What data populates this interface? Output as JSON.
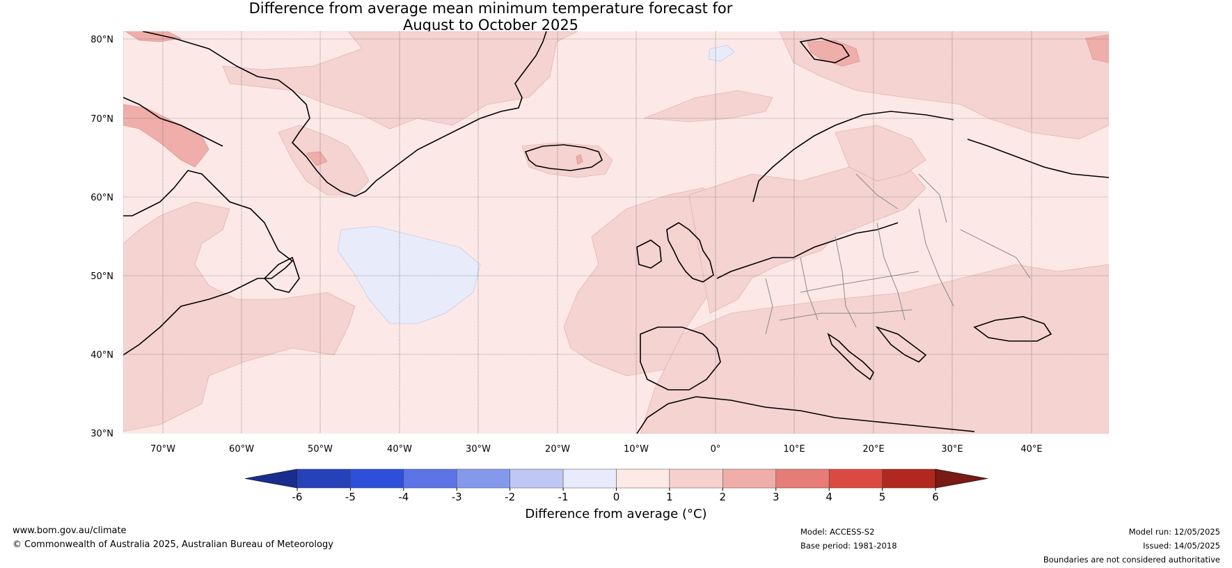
{
  "title": {
    "line1": "Difference from average mean minimum temperature forecast for",
    "line2": "August to October 2025"
  },
  "map": {
    "lat_labels": [
      "80°N",
      "70°N",
      "60°N",
      "50°N",
      "40°N",
      "30°N"
    ],
    "lon_labels": [
      "70°W",
      "60°W",
      "50°W",
      "40°W",
      "30°W",
      "20°W",
      "10°W",
      "0°",
      "10°E",
      "20°E",
      "30°E",
      "40°E"
    ],
    "background_color": "#fce9e7",
    "warm_shade_1": "#f4d3d1",
    "warm_shade_2": "#efaeaa",
    "cool_shade": "#e8ebfa"
  },
  "colorbar": {
    "ticks": [
      "-6",
      "-5",
      "-4",
      "-3",
      "-2",
      "-1",
      "0",
      "1",
      "2",
      "3",
      "4",
      "5",
      "6"
    ],
    "colors": [
      "#1a2d8f",
      "#2542b8",
      "#2e4fdb",
      "#5c74e6",
      "#8599ec",
      "#bfc8f4",
      "#e8ebfb",
      "#fde9e6",
      "#f5d0cd",
      "#efaeaa",
      "#e67c76",
      "#db4a40",
      "#b0281f",
      "#7a1a16"
    ],
    "label": "Difference from average (°C)"
  },
  "footer": {
    "url": "www.bom.gov.au/climate",
    "copyright": "© Commonwealth of Australia 2025, Australian Bureau of Meteorology",
    "model": "Model: ACCESS-S2",
    "base_period": "Base period: 1981-2018",
    "model_run": "Model run: 12/05/2025",
    "issued": "Issued: 14/05/2025",
    "disclaimer": "Boundaries are not considered authoritative"
  }
}
